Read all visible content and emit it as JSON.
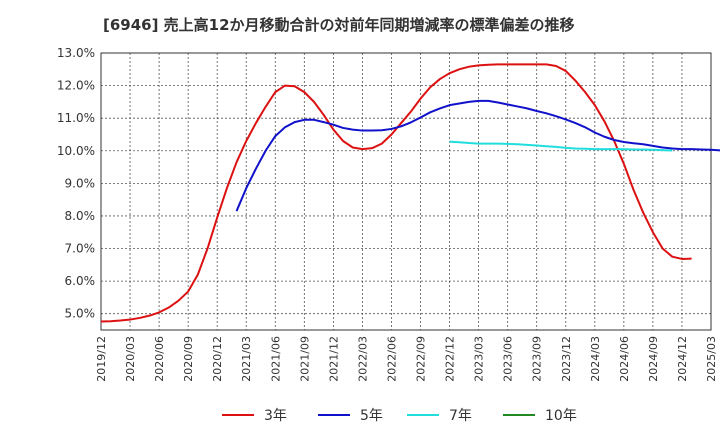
{
  "chart_data": {
    "type": "line",
    "title": "[6946]  売上高12か月移動合計の対前年同期増減率の標準偏差の推移",
    "xlabel": "",
    "ylabel": "",
    "grid": true,
    "legend_position": "bottom",
    "ylim": [
      4.5,
      13.0
    ],
    "yticks": [
      "5.0%",
      "6.0%",
      "7.0%",
      "8.0%",
      "9.0%",
      "10.0%",
      "11.0%",
      "12.0%",
      "13.0%"
    ],
    "xticks": [
      "2019/12",
      "2020/03",
      "2020/06",
      "2020/09",
      "2020/12",
      "2021/03",
      "2021/06",
      "2021/09",
      "2021/12",
      "2022/03",
      "2022/06",
      "2022/09",
      "2022/12",
      "2023/03",
      "2023/06",
      "2023/09",
      "2023/12",
      "2024/03",
      "2024/06",
      "2024/09",
      "2024/12",
      "2025/03"
    ],
    "months": [
      "2019/12",
      "2020/01",
      "2020/02",
      "2020/03",
      "2020/04",
      "2020/05",
      "2020/06",
      "2020/07",
      "2020/08",
      "2020/09",
      "2020/10",
      "2020/11",
      "2020/12",
      "2021/01",
      "2021/02",
      "2021/03",
      "2021/04",
      "2021/05",
      "2021/06",
      "2021/07",
      "2021/08",
      "2021/09",
      "2021/10",
      "2021/11",
      "2021/12",
      "2022/01",
      "2022/02",
      "2022/03",
      "2022/04",
      "2022/05",
      "2022/06",
      "2022/07",
      "2022/08",
      "2022/09",
      "2022/10",
      "2022/11",
      "2022/12",
      "2023/01",
      "2023/02",
      "2023/03",
      "2023/04",
      "2023/05",
      "2023/06",
      "2023/07",
      "2023/08",
      "2023/09",
      "2023/10",
      "2023/11",
      "2023/12",
      "2024/01",
      "2024/02",
      "2024/03",
      "2024/04",
      "2024/05",
      "2024/06",
      "2024/07",
      "2024/08",
      "2024/09",
      "2024/10",
      "2024/11",
      "2024/12"
    ],
    "series": [
      {
        "name": "3年",
        "color": "#dd1111",
        "start": "2019/12",
        "values": [
          4.76,
          4.77,
          4.79,
          4.82,
          4.87,
          4.94,
          5.04,
          5.19,
          5.4,
          5.68,
          6.2,
          7.0,
          7.95,
          8.85,
          9.65,
          10.3,
          10.85,
          11.35,
          11.8,
          12.0,
          11.98,
          11.8,
          11.5,
          11.1,
          10.65,
          10.3,
          10.1,
          10.05,
          10.08,
          10.22,
          10.5,
          10.85,
          11.2,
          11.6,
          11.95,
          12.2,
          12.38,
          12.5,
          12.58,
          12.62,
          12.64,
          12.65,
          12.65,
          12.65,
          12.65,
          12.65,
          12.65,
          12.6,
          12.45,
          12.15,
          11.8,
          11.4,
          10.9,
          10.3,
          9.6,
          8.8,
          8.1,
          7.5,
          7.0,
          6.75,
          6.68,
          6.69
        ]
      },
      {
        "name": "5年",
        "color": "#1111cc",
        "start": "2021/02",
        "values": [
          8.15,
          8.85,
          9.45,
          10.0,
          10.45,
          10.72,
          10.88,
          10.95,
          10.95,
          10.88,
          10.8,
          10.7,
          10.65,
          10.62,
          10.62,
          10.63,
          10.67,
          10.75,
          10.87,
          11.02,
          11.18,
          11.3,
          11.4,
          11.45,
          11.5,
          11.53,
          11.53,
          11.48,
          11.42,
          11.36,
          11.3,
          11.22,
          11.15,
          11.06,
          10.96,
          10.85,
          10.72,
          10.56,
          10.43,
          10.33,
          10.27,
          10.23,
          10.2,
          10.15,
          10.1,
          10.07,
          10.05,
          10.05,
          10.04,
          10.03,
          10.01,
          9.99
        ]
      },
      {
        "name": "7年",
        "color": "#22dddd",
        "start": "2022/12",
        "values": [
          10.28,
          10.26,
          10.24,
          10.22,
          10.22,
          10.22,
          10.21,
          10.2,
          10.18,
          10.16,
          10.14,
          10.12,
          10.09,
          10.07,
          10.06,
          10.05,
          10.05,
          10.05,
          10.05,
          10.04,
          10.04,
          10.03,
          10.02,
          10.01
        ]
      },
      {
        "name": "10年",
        "color": "#228822",
        "start": "2024/12",
        "values": []
      }
    ]
  }
}
